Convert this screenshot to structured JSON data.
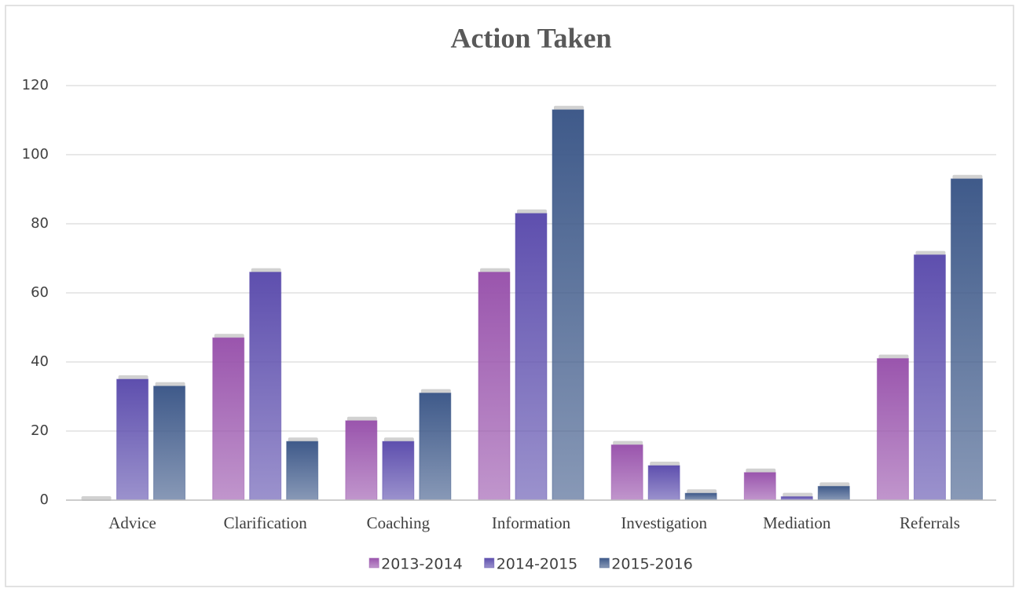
{
  "chart_data": {
    "type": "bar",
    "title": "Action Taken",
    "categories": [
      "Advice",
      "Clarification",
      "Coaching",
      "Information",
      "Investigation",
      "Mediation",
      "Referrals"
    ],
    "series": [
      {
        "name": "2013-2014",
        "color": "#9a55ad",
        "values": [
          0,
          47,
          23,
          66,
          16,
          8,
          41
        ]
      },
      {
        "name": "2014-2015",
        "color": "#5e4fae",
        "values": [
          35,
          66,
          17,
          83,
          10,
          1,
          71
        ]
      },
      {
        "name": "2015-2016",
        "color": "#3f5a8a",
        "values": [
          33,
          17,
          31,
          113,
          2,
          4,
          93
        ]
      }
    ],
    "ylim": [
      0,
      120
    ],
    "yticks": [
      0,
      20,
      40,
      60,
      80,
      100,
      120
    ],
    "grid": true,
    "legend": "bottom"
  }
}
